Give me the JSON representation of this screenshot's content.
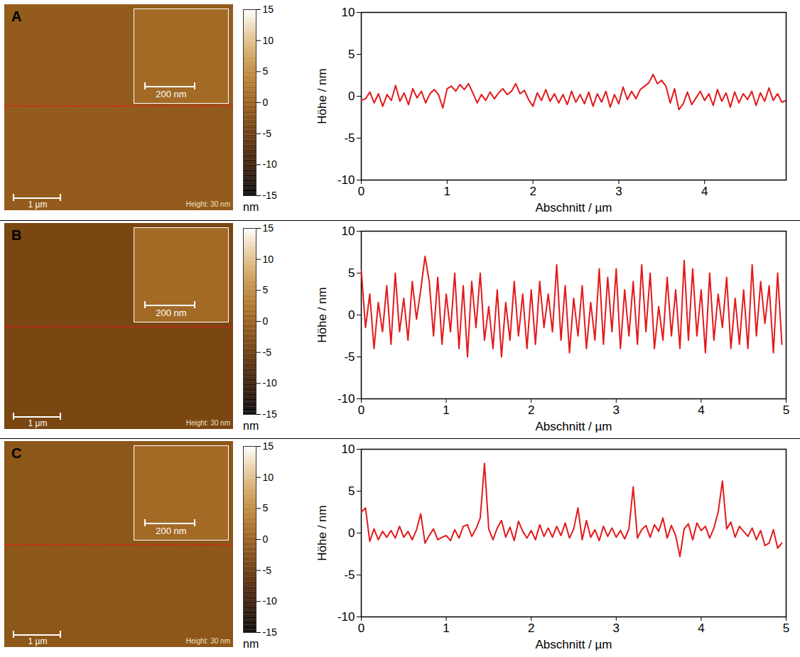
{
  "chart_data": [
    {
      "type": "line",
      "title": "A",
      "x_label": "Abschnitt / µm",
      "y_label": "Höhe / nm",
      "xlim": [
        0,
        4.95
      ],
      "xticks": [
        0,
        1,
        2,
        3,
        4
      ],
      "ylim": [
        -10,
        10
      ],
      "yticks": [
        -10,
        -5,
        0,
        5,
        10
      ],
      "color": "#e31a1c",
      "x": [
        0,
        0.05,
        0.1,
        0.15,
        0.2,
        0.25,
        0.3,
        0.35,
        0.4,
        0.45,
        0.5,
        0.55,
        0.6,
        0.65,
        0.7,
        0.75,
        0.8,
        0.85,
        0.9,
        0.95,
        1,
        1.05,
        1.1,
        1.15,
        1.2,
        1.25,
        1.3,
        1.35,
        1.4,
        1.45,
        1.5,
        1.55,
        1.6,
        1.65,
        1.7,
        1.75,
        1.8,
        1.85,
        1.9,
        1.95,
        2,
        2.05,
        2.1,
        2.15,
        2.2,
        2.25,
        2.3,
        2.35,
        2.4,
        2.45,
        2.5,
        2.55,
        2.6,
        2.65,
        2.7,
        2.75,
        2.8,
        2.85,
        2.9,
        2.95,
        3,
        3.05,
        3.1,
        3.15,
        3.2,
        3.25,
        3.3,
        3.35,
        3.4,
        3.45,
        3.5,
        3.55,
        3.6,
        3.65,
        3.7,
        3.75,
        3.8,
        3.85,
        3.9,
        3.95,
        4,
        4.05,
        4.1,
        4.15,
        4.2,
        4.25,
        4.3,
        4.35,
        4.4,
        4.45,
        4.5,
        4.55,
        4.6,
        4.65,
        4.7,
        4.75,
        4.8,
        4.85,
        4.9,
        4.95
      ],
      "values": [
        -0.5,
        -0.3,
        0.5,
        -0.8,
        0.3,
        -1.2,
        0.2,
        -0.5,
        1.3,
        -0.6,
        0.4,
        -1.0,
        0.9,
        -0.2,
        0.6,
        -0.8,
        0.3,
        0.8,
        0.2,
        -1.4,
        0.9,
        1.2,
        0.6,
        1.4,
        0.8,
        1.5,
        0.4,
        -0.8,
        0.2,
        -0.5,
        0.5,
        -0.3,
        0.4,
        0.9,
        0.2,
        0.6,
        1.5,
        0.3,
        0.7,
        -0.4,
        -1.2,
        0.4,
        -0.5,
        0.8,
        -0.6,
        0.3,
        -0.8,
        0.2,
        -1.0,
        0.6,
        -0.7,
        0.2,
        -0.9,
        0.5,
        -1.2,
        0.3,
        -0.7,
        0.6,
        -1.3,
        0.2,
        -0.9,
        1.1,
        -0.4,
        0.6,
        -0.3,
        0.8,
        1.2,
        1.6,
        2.6,
        1.5,
        1.9,
        1.2,
        -0.8,
        0.9,
        -1.6,
        -0.9,
        0.5,
        -1.0,
        -0.2,
        0.6,
        -0.5,
        0.3,
        -1.1,
        0.8,
        -0.6,
        0.4,
        -1.3,
        0.5,
        -0.8,
        0.3,
        -0.4,
        0.6,
        -1.1,
        0.4,
        -0.6,
        1.0,
        -0.5,
        0.3,
        -0.7,
        -0.5
      ],
      "image": {
        "scale_bar": "1 µm",
        "inset_scale_bar": "200 nm",
        "height_label": "Height: 30 nm",
        "colorbar": {
          "range": [
            -15,
            15
          ],
          "ticks": [
            15,
            10,
            5,
            0,
            -5,
            -10,
            -15
          ],
          "label": "nm"
        }
      }
    },
    {
      "type": "line",
      "title": "B",
      "x_label": "Abschnitt / µm",
      "y_label": "Höhe / nm",
      "xlim": [
        0,
        5
      ],
      "xticks": [
        0,
        1,
        2,
        3,
        4,
        5
      ],
      "ylim": [
        -10,
        10
      ],
      "yticks": [
        -10,
        -5,
        0,
        5,
        10
      ],
      "color": "#e31a1c",
      "x": [
        0,
        0.05,
        0.1,
        0.15,
        0.2,
        0.25,
        0.3,
        0.35,
        0.4,
        0.45,
        0.5,
        0.55,
        0.6,
        0.65,
        0.7,
        0.75,
        0.8,
        0.85,
        0.9,
        0.95,
        1,
        1.05,
        1.1,
        1.15,
        1.2,
        1.25,
        1.3,
        1.35,
        1.4,
        1.45,
        1.5,
        1.55,
        1.6,
        1.65,
        1.7,
        1.75,
        1.8,
        1.85,
        1.9,
        1.95,
        2,
        2.05,
        2.1,
        2.15,
        2.2,
        2.25,
        2.3,
        2.35,
        2.4,
        2.45,
        2.5,
        2.55,
        2.6,
        2.65,
        2.7,
        2.75,
        2.8,
        2.85,
        2.9,
        2.95,
        3,
        3.05,
        3.1,
        3.15,
        3.2,
        3.25,
        3.3,
        3.35,
        3.4,
        3.45,
        3.5,
        3.55,
        3.6,
        3.65,
        3.7,
        3.75,
        3.8,
        3.85,
        3.9,
        3.95,
        4,
        4.05,
        4.1,
        4.15,
        4.2,
        4.25,
        4.3,
        4.35,
        4.4,
        4.45,
        4.5,
        4.55,
        4.6,
        4.65,
        4.7,
        4.75,
        4.8,
        4.85,
        4.9,
        4.95
      ],
      "values": [
        5.3,
        -1.5,
        2.5,
        -4.0,
        1.5,
        -2.0,
        3.5,
        -3.5,
        5.0,
        -2.0,
        2.0,
        -3.0,
        4.0,
        -0.5,
        3.0,
        7.0,
        4.0,
        -2.5,
        4.5,
        -3.5,
        2.5,
        -2.0,
        5.0,
        -4.0,
        3.5,
        -5.0,
        4.0,
        -1.5,
        5.0,
        -3.0,
        1.0,
        -4.0,
        3.0,
        -5.0,
        1.5,
        -3.0,
        4.0,
        -2.5,
        2.5,
        -4.0,
        3.0,
        -3.5,
        4.0,
        -1.5,
        2.5,
        -2.0,
        6.0,
        -3.0,
        3.5,
        -4.5,
        2.0,
        -2.5,
        3.5,
        -4.0,
        1.5,
        -3.0,
        5.5,
        -3.5,
        4.5,
        -2.0,
        5.5,
        -4.0,
        3.0,
        -2.5,
        4.0,
        -3.5,
        6.0,
        -2.0,
        5.0,
        -4.0,
        1.0,
        -3.0,
        4.5,
        -2.5,
        3.0,
        -4.0,
        6.5,
        -3.0,
        5.5,
        -2.5,
        3.0,
        -4.5,
        5.0,
        -3.0,
        2.5,
        -1.5,
        4.5,
        -4.0,
        2.0,
        -3.5,
        3.0,
        -4.0,
        6.0,
        -2.5,
        4.0,
        -1.0,
        3.5,
        -4.5,
        5.0,
        -3.5
      ],
      "image": {
        "scale_bar": "1 µm",
        "inset_scale_bar": "200 nm",
        "height_label": "Height: 30 nm",
        "colorbar": {
          "range": [
            -15,
            15
          ],
          "ticks": [
            15,
            10,
            5,
            0,
            -5,
            -10,
            -15
          ],
          "label": "nm"
        }
      }
    },
    {
      "type": "line",
      "title": "C",
      "x_label": "Abschnitt / µm",
      "y_label": "Höhe / nm",
      "xlim": [
        0,
        5
      ],
      "xticks": [
        0,
        1,
        2,
        3,
        4,
        5
      ],
      "ylim": [
        -10,
        10
      ],
      "yticks": [
        -10,
        -5,
        0,
        5,
        10
      ],
      "color": "#e31a1c",
      "x": [
        0,
        0.05,
        0.1,
        0.15,
        0.2,
        0.25,
        0.3,
        0.35,
        0.4,
        0.45,
        0.5,
        0.55,
        0.6,
        0.65,
        0.7,
        0.75,
        0.8,
        0.85,
        0.9,
        0.95,
        1,
        1.05,
        1.1,
        1.15,
        1.2,
        1.25,
        1.3,
        1.35,
        1.4,
        1.45,
        1.5,
        1.55,
        1.6,
        1.65,
        1.7,
        1.75,
        1.8,
        1.85,
        1.9,
        1.95,
        2,
        2.05,
        2.1,
        2.15,
        2.2,
        2.25,
        2.3,
        2.35,
        2.4,
        2.45,
        2.5,
        2.55,
        2.6,
        2.65,
        2.7,
        2.75,
        2.8,
        2.85,
        2.9,
        2.95,
        3,
        3.05,
        3.1,
        3.15,
        3.2,
        3.25,
        3.3,
        3.35,
        3.4,
        3.45,
        3.5,
        3.55,
        3.6,
        3.65,
        3.7,
        3.75,
        3.8,
        3.85,
        3.9,
        3.95,
        4,
        4.05,
        4.1,
        4.15,
        4.2,
        4.25,
        4.3,
        4.35,
        4.4,
        4.45,
        4.5,
        4.55,
        4.6,
        4.65,
        4.7,
        4.75,
        4.8,
        4.85,
        4.9,
        4.95
      ],
      "values": [
        2.5,
        3.0,
        -1.0,
        0.5,
        -0.8,
        0.2,
        -0.5,
        0.3,
        -0.6,
        0.8,
        -0.5,
        0.2,
        -0.8,
        0.4,
        2.3,
        -1.2,
        -0.3,
        0.5,
        -0.8,
        -0.5,
        -0.3,
        -0.9,
        0.4,
        -0.6,
        0.8,
        1.0,
        -0.4,
        0.5,
        1.8,
        8.3,
        0.5,
        -0.8,
        0.6,
        1.5,
        -0.5,
        0.7,
        -0.9,
        1.4,
        0.2,
        -0.6,
        0.3,
        -0.8,
        1.0,
        -0.4,
        0.6,
        -0.5,
        0.8,
        -0.3,
        1.2,
        -0.6,
        0.5,
        3.0,
        -0.8,
        1.5,
        -0.5,
        0.4,
        -0.9,
        0.8,
        -0.4,
        0.6,
        -0.5,
        0.3,
        -0.7,
        0.5,
        5.5,
        -0.6,
        0.4,
        0.9,
        -0.5,
        1.0,
        0.2,
        1.8,
        -0.6,
        0.9,
        -0.3,
        -2.8,
        0.5,
        1.1,
        -0.8,
        1.2,
        0.3,
        0.8,
        -0.6,
        0.6,
        2.5,
        6.2,
        0.5,
        1.3,
        -0.5,
        0.8,
        0.2,
        -0.4,
        0.6,
        -0.8,
        0.3,
        -1.5,
        -1.2,
        0.4,
        -1.8,
        -1.2
      ],
      "image": {
        "scale_bar": "1 µm",
        "inset_scale_bar": "200 nm",
        "height_label": "Height: 30 nm",
        "colorbar": {
          "range": [
            -15,
            15
          ],
          "ticks": [
            15,
            10,
            5,
            0,
            -5,
            -10,
            -15
          ],
          "label": "nm"
        }
      }
    }
  ]
}
